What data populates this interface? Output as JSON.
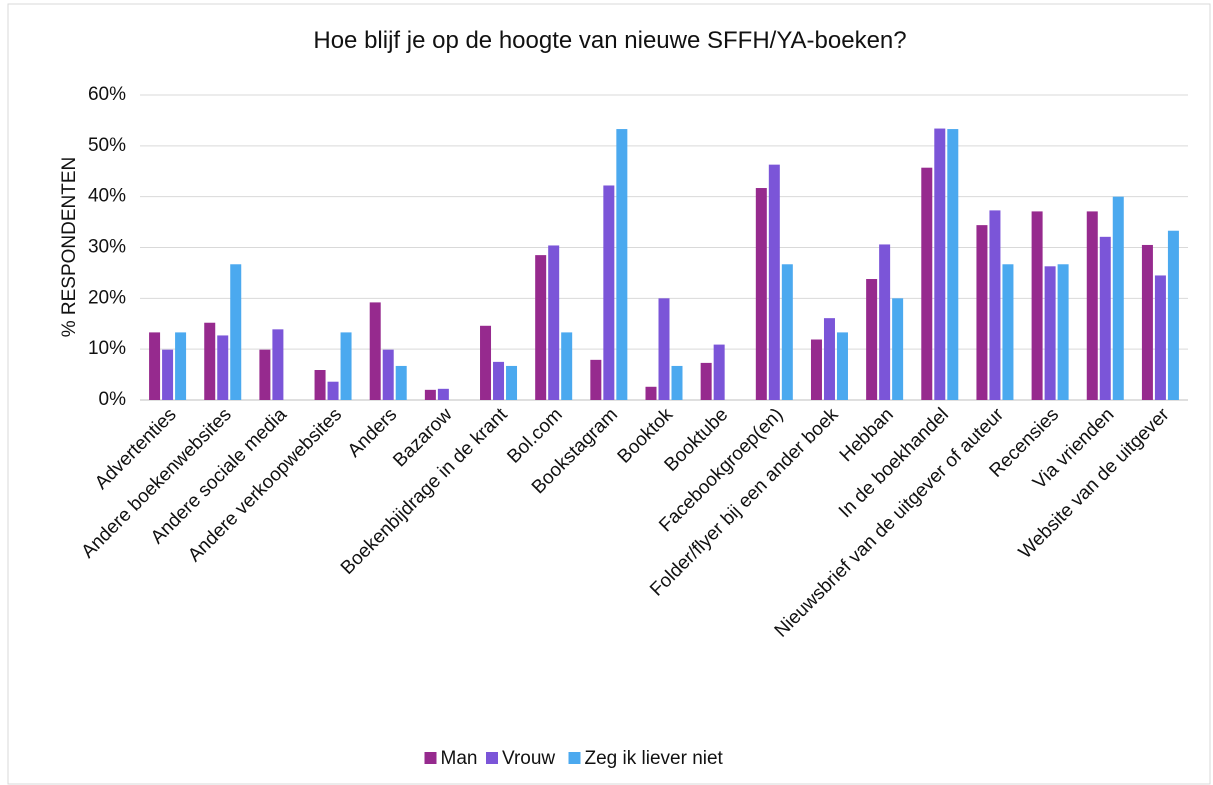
{
  "chart_data": {
    "type": "bar",
    "title": "Hoe blijf je op de hoogte van nieuwe SFFH/YA-boeken?",
    "y_label": "% RESPONDENTEN",
    "categories": [
      "Advertenties",
      "Andere boekenwebsites",
      "Andere sociale media",
      "Andere verkoopwebsites",
      "Anders",
      "Bazarow",
      "Boekenbijdrage in de krant",
      "Bol.com",
      "Bookstagram",
      "Booktok",
      "Booktube",
      "Facebookgroep(en)",
      "Folder/flyer bij een ander boek",
      "Hebban",
      "In de boekhandel",
      "Nieuwsbrief van de uitgever of auteur",
      "Recensies",
      "Via vrienden",
      "Website van de uitgever"
    ],
    "series": [
      {
        "name": "Man",
        "color": "#962a8e",
        "values": [
          13.3,
          15.2,
          9.9,
          5.9,
          19.2,
          2.0,
          14.6,
          28.5,
          7.9,
          2.6,
          7.3,
          41.7,
          11.9,
          23.8,
          45.7,
          34.4,
          37.1,
          37.1,
          30.5
        ]
      },
      {
        "name": "Vrouw",
        "color": "#7b55d8",
        "values": [
          9.9,
          12.7,
          13.9,
          3.6,
          9.9,
          2.2,
          7.5,
          30.4,
          42.2,
          20.0,
          10.9,
          46.3,
          16.1,
          30.6,
          53.4,
          37.3,
          26.3,
          32.1,
          24.5
        ]
      },
      {
        "name": "Zeg ik liever niet",
        "color": "#4ba9ef",
        "values": [
          13.3,
          26.7,
          0,
          13.3,
          6.7,
          0,
          6.7,
          13.3,
          53.3,
          6.7,
          0,
          26.7,
          13.3,
          20.0,
          53.3,
          26.7,
          26.7,
          40.0,
          33.3
        ]
      }
    ],
    "ylim": [
      0,
      60
    ],
    "yticks": [
      {
        "value": 0,
        "label": "0%"
      },
      {
        "value": 10,
        "label": "10%"
      },
      {
        "value": 20,
        "label": "20%"
      },
      {
        "value": 30,
        "label": "30%"
      },
      {
        "value": 40,
        "label": "40%"
      },
      {
        "value": 50,
        "label": "50%"
      },
      {
        "value": 60,
        "label": "60%"
      }
    ],
    "grid": true,
    "legend": "bottom"
  }
}
